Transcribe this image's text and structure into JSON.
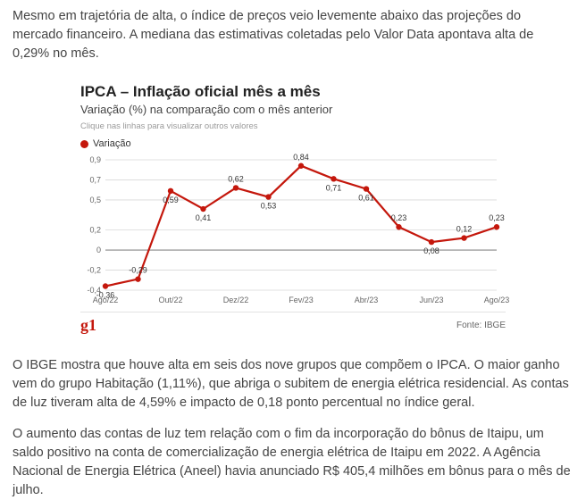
{
  "paragraphs": {
    "p1": "Mesmo em trajetória de alta, o índice de preços veio levemente abaixo das projeções do mercado financeiro. A mediana das estimativas coletadas pelo Valor Data apontava alta de 0,29% no mês.",
    "p2": "O IBGE mostra que houve alta em seis dos nove grupos que compõem o IPCA. O maior ganho vem do grupo Habitação (1,11%), que abriga o subitem de energia elétrica residencial. As contas de luz tiveram alta de 4,59% e impacto de 0,18 ponto percentual no índice geral.",
    "p3": "O aumento das contas de luz tem relação com o fim da incorporação do bônus de Itaipu, um saldo positivo na conta de comercialização de energia elétrica de Itaipu em 2022. A Agência Nacional de Energia Elétrica (Aneel) havia anunciado R$ 405,4 milhões em bônus para o mês de julho."
  },
  "chart": {
    "title": "IPCA – Inflação oficial mês a mês",
    "subtitle": "Variação (%) na comparação com o mês anterior",
    "hint": "Clique nas linhas para visualizar outros valores",
    "legend_label": "Variação",
    "brand": "g1",
    "source": "Fonte: IBGE",
    "type": "line",
    "series_color": "#c4170c",
    "marker_color": "#c4170c",
    "marker_radius": 3.2,
    "line_width": 2.2,
    "grid_color": "#d8d8d8",
    "zero_line_color": "#888888",
    "axis_text_color": "#666666",
    "label_text_color": "#333333",
    "background_color": "#ffffff",
    "tick_fontsize": 9,
    "value_label_fontsize": 9,
    "ylim": [
      -0.4,
      0.9
    ],
    "yticks": [
      -0.4,
      -0.2,
      0,
      0.2,
      0.5,
      0.7,
      0.9
    ],
    "ytick_labels": [
      "-0,4",
      "-0,2",
      "0",
      "0,2",
      "0,5",
      "0,7",
      "0,9"
    ],
    "x_labels": [
      "Ago/22",
      "",
      "Out/22",
      "",
      "Dez/22",
      "",
      "Fev/23",
      "",
      "Abr/23",
      "",
      "Jun/23",
      "",
      "Ago/23"
    ],
    "values": [
      -0.36,
      -0.29,
      0.59,
      0.41,
      0.62,
      0.53,
      0.84,
      0.71,
      0.61,
      0.23,
      0.08,
      0.12,
      0.23
    ],
    "value_labels": [
      "-0,36",
      "-0,29",
      "0,59",
      "0,41",
      "0,62",
      "0,53",
      "0,84",
      "0,71",
      "0,61",
      "0,23",
      "0,08",
      "0,12",
      "0,23"
    ],
    "label_positions": [
      "below",
      "above",
      "below",
      "below",
      "above",
      "below",
      "above",
      "below",
      "below",
      "above",
      "below",
      "above",
      "above"
    ]
  }
}
